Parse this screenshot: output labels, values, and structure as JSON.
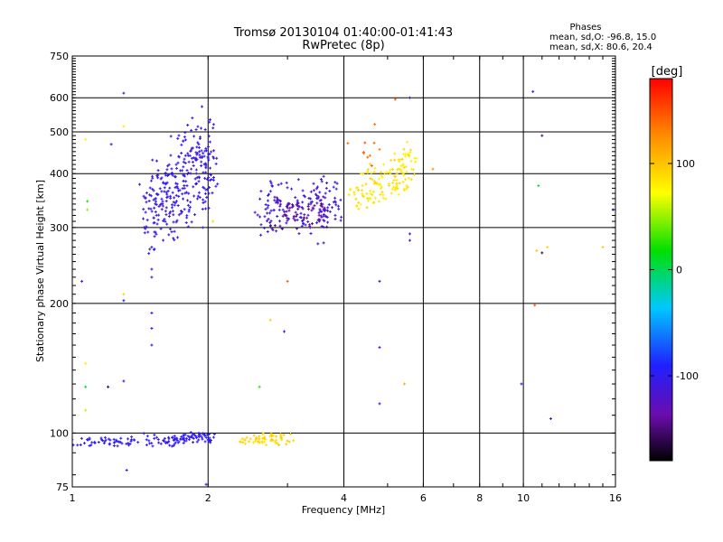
{
  "chart_data": {
    "type": "scatter",
    "title": "Tromsø 20130104 01:40:00-01:41:43",
    "subtitle": "RwPretec (8p)",
    "xlabel": "Frequency [MHz]",
    "ylabel": "Stationary phase Virtual Height [km]",
    "x_scale": "log",
    "y_scale": "log",
    "xlim": [
      1,
      16
    ],
    "ylim": [
      75,
      750
    ],
    "x_ticks": [
      1,
      2,
      4,
      6,
      8,
      10,
      16
    ],
    "x_tick_labels": [
      "1",
      "2",
      "4",
      "6",
      "8",
      "10",
      "16"
    ],
    "y_ticks": [
      75,
      100,
      200,
      300,
      400,
      500,
      600,
      750
    ],
    "y_tick_labels": [
      "75",
      "100",
      "200",
      "300",
      "400",
      "500",
      "600",
      "750"
    ],
    "grid": true,
    "stats": {
      "heading": "Phases",
      "line_o": "mean, sd,O: -96.8, 15.0",
      "line_x": "mean, sd,X: 80.6, 20.4"
    },
    "colorbar": {
      "label": "[deg]",
      "min": -180,
      "max": 180,
      "ticks": [
        100,
        0,
        -100
      ],
      "tick_labels": [
        "100",
        "0",
        "-100"
      ]
    },
    "clusters": [
      {
        "phase": -100,
        "curve": [
          [
            1.0,
            95
          ],
          [
            1.3,
            96
          ],
          [
            1.6,
            96
          ],
          [
            1.85,
            98
          ],
          [
            2.05,
            97
          ]
        ],
        "count": 150,
        "x_jitter": 0.01,
        "y_jitter": 0.015
      },
      {
        "phase": 90,
        "curve": [
          [
            2.35,
            96
          ],
          [
            2.7,
            97
          ],
          [
            3.05,
            96
          ]
        ],
        "count": 60,
        "x_jitter": 0.01,
        "y_jitter": 0.015
      },
      {
        "phase": -105,
        "curve": [
          [
            1.45,
            325
          ],
          [
            1.6,
            345
          ],
          [
            1.75,
            380
          ],
          [
            1.9,
            420
          ],
          [
            2.05,
            400
          ]
        ],
        "count": 320,
        "x_jitter": 0.02,
        "y_jitter": 0.13
      },
      {
        "phase": -110,
        "curve": [
          [
            2.6,
            330
          ],
          [
            3.0,
            335
          ],
          [
            3.5,
            335
          ],
          [
            3.9,
            340
          ]
        ],
        "count": 160,
        "x_jitter": 0.02,
        "y_jitter": 0.08
      },
      {
        "phase": -140,
        "curve": [
          [
            2.8,
            320
          ],
          [
            3.2,
            325
          ],
          [
            3.7,
            330
          ]
        ],
        "count": 60,
        "x_jitter": 0.02,
        "y_jitter": 0.04
      },
      {
        "phase": 85,
        "curve": [
          [
            4.2,
            360
          ],
          [
            4.8,
            375
          ],
          [
            5.3,
            395
          ],
          [
            5.7,
            430
          ]
        ],
        "count": 140,
        "x_jitter": 0.02,
        "y_jitter": 0.06
      },
      {
        "phase": 140,
        "curve": [
          [
            4.3,
            450
          ],
          [
            4.9,
            480
          ]
        ],
        "count": 10,
        "x_jitter": 0.03,
        "y_jitter": 0.05
      }
    ],
    "isolated_points": [
      {
        "x": 1.3,
        "y": 615,
        "phase": -100
      },
      {
        "x": 1.3,
        "y": 515,
        "phase": 90
      },
      {
        "x": 1.07,
        "y": 480,
        "phase": 85
      },
      {
        "x": 1.22,
        "y": 468,
        "phase": -100
      },
      {
        "x": 1.08,
        "y": 345,
        "phase": 20
      },
      {
        "x": 1.08,
        "y": 330,
        "phase": 40
      },
      {
        "x": 1.05,
        "y": 225,
        "phase": -100
      },
      {
        "x": 1.5,
        "y": 270,
        "phase": -100
      },
      {
        "x": 1.5,
        "y": 240,
        "phase": -100
      },
      {
        "x": 1.5,
        "y": 230,
        "phase": -100
      },
      {
        "x": 1.3,
        "y": 210,
        "phase": 90
      },
      {
        "x": 1.3,
        "y": 203,
        "phase": -100
      },
      {
        "x": 1.5,
        "y": 190,
        "phase": -100
      },
      {
        "x": 1.5,
        "y": 175,
        "phase": -100
      },
      {
        "x": 1.5,
        "y": 160,
        "phase": -100
      },
      {
        "x": 1.07,
        "y": 145,
        "phase": 85
      },
      {
        "x": 1.07,
        "y": 128,
        "phase": 20
      },
      {
        "x": 1.3,
        "y": 132,
        "phase": -100
      },
      {
        "x": 1.2,
        "y": 128,
        "phase": -150
      },
      {
        "x": 1.07,
        "y": 113,
        "phase": 50
      },
      {
        "x": 1.32,
        "y": 82,
        "phase": -100
      },
      {
        "x": 1.98,
        "y": 76,
        "phase": -100
      },
      {
        "x": 1.7,
        "y": 420,
        "phase": -100
      },
      {
        "x": 2.05,
        "y": 310,
        "phase": 90
      },
      {
        "x": 3.0,
        "y": 225,
        "phase": 150
      },
      {
        "x": 2.75,
        "y": 183,
        "phase": 90
      },
      {
        "x": 2.95,
        "y": 172,
        "phase": -100
      },
      {
        "x": 2.6,
        "y": 128,
        "phase": 20
      },
      {
        "x": 4.8,
        "y": 225,
        "phase": -100
      },
      {
        "x": 4.8,
        "y": 158,
        "phase": -100
      },
      {
        "x": 4.8,
        "y": 117,
        "phase": -100
      },
      {
        "x": 5.45,
        "y": 130,
        "phase": 110
      },
      {
        "x": 5.6,
        "y": 290,
        "phase": -100
      },
      {
        "x": 5.6,
        "y": 280,
        "phase": -100
      },
      {
        "x": 5.2,
        "y": 595,
        "phase": 150
      },
      {
        "x": 5.6,
        "y": 600,
        "phase": -100
      },
      {
        "x": 6.3,
        "y": 410,
        "phase": 120
      },
      {
        "x": 10.5,
        "y": 620,
        "phase": -100
      },
      {
        "x": 11.0,
        "y": 490,
        "phase": -150
      },
      {
        "x": 10.8,
        "y": 375,
        "phase": 10
      },
      {
        "x": 10.7,
        "y": 265,
        "phase": 90
      },
      {
        "x": 11.0,
        "y": 262,
        "phase": -150
      },
      {
        "x": 11.3,
        "y": 270,
        "phase": 90
      },
      {
        "x": 10.6,
        "y": 198,
        "phase": 150
      },
      {
        "x": 9.9,
        "y": 130,
        "phase": -100
      },
      {
        "x": 11.5,
        "y": 108,
        "phase": -100
      },
      {
        "x": 15.0,
        "y": 270,
        "phase": 90
      },
      {
        "x": 15.8,
        "y": 330,
        "phase": -100
      }
    ]
  }
}
